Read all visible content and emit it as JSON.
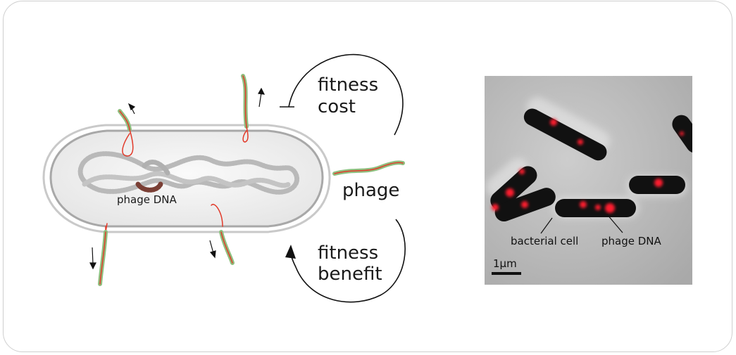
{
  "diagram": {
    "labels": {
      "phage_dna_in_cell": "phage DNA",
      "fitness_cost_line1": "fitness",
      "fitness_cost_line2": "cost",
      "phage": "phage",
      "fitness_benefit_line1": "fitness",
      "fitness_benefit_line2": "benefit"
    },
    "colors": {
      "phage_green": "#8fbf7f",
      "phage_red": "#e23a2a",
      "dna_gray": "#b8b8b8",
      "dna_highlight": "#7a3f35",
      "membrane": "#b0b0b0",
      "cell_fill": "#f2f2f2"
    }
  },
  "micrograph": {
    "labels": {
      "bacterial_cell": "bacterial cell",
      "phage_dna": "phage DNA",
      "scale_bar": "1μm"
    },
    "colors": {
      "background": "#bdbdbd",
      "cell": "#111111",
      "fluorescence": "#ff1f2e"
    }
  }
}
